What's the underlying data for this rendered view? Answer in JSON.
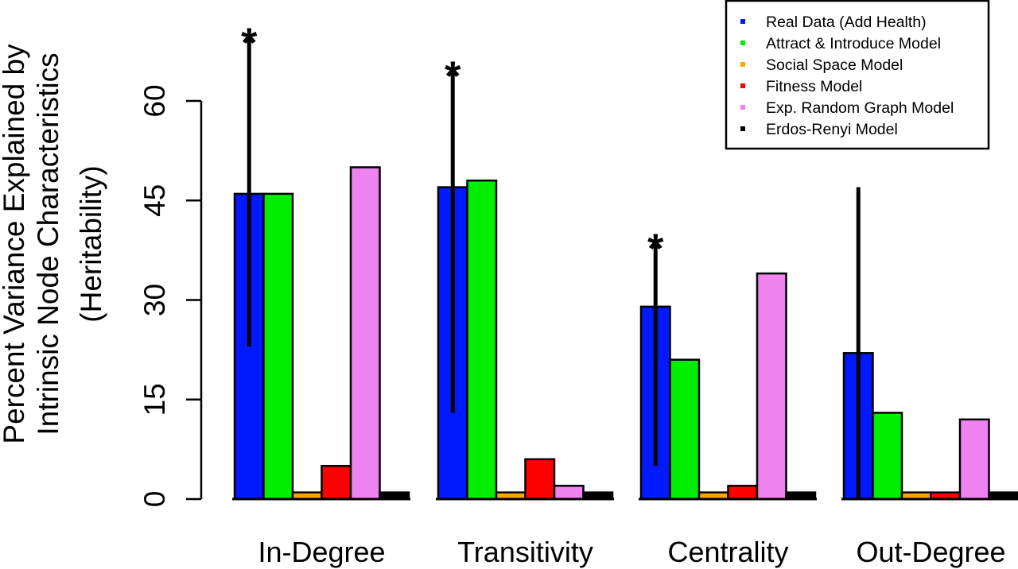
{
  "chart_data": {
    "type": "bar",
    "title": "",
    "xlabel": "",
    "ylabel_lines": [
      "Percent Variance Explained by",
      "Intrinsic Node Characteristics",
      "(Heritability)"
    ],
    "ylim": [
      0,
      60
    ],
    "yticks": [
      "0",
      "15",
      "30",
      "45",
      "60"
    ],
    "ytick_values": [
      0,
      15,
      30,
      45,
      60
    ],
    "categories": [
      "In-Degree",
      "Transitivity",
      "Centrality",
      "Out-Degree"
    ],
    "series": [
      {
        "name": "Real Data (Add Health)",
        "color": "#0019ff",
        "values": [
          46,
          47,
          29,
          22
        ]
      },
      {
        "name": "Attract & Introduce Model",
        "color": "#00ee00",
        "values": [
          46,
          48,
          21,
          13
        ]
      },
      {
        "name": "Social Space Model",
        "color": "#ffa500",
        "values": [
          1,
          1,
          1,
          1
        ]
      },
      {
        "name": "Fitness Model",
        "color": "#ff0000",
        "values": [
          5,
          6,
          2,
          1
        ]
      },
      {
        "name": "Exp. Random Graph Model",
        "color": "#ee82ee",
        "values": [
          50,
          2,
          34,
          12
        ]
      },
      {
        "name": "Erdos-Renyi Model",
        "color": "#000000",
        "values": [
          1,
          1,
          1,
          1
        ]
      }
    ],
    "error_bars": [
      {
        "category": "In-Degree",
        "series": "Real Data (Add Health)",
        "low": 23,
        "high": 70
      },
      {
        "category": "Transitivity",
        "series": "Real Data (Add Health)",
        "low": 13,
        "high": 65
      },
      {
        "category": "Centrality",
        "series": "Real Data (Add Health)",
        "low": 5,
        "high": 39
      },
      {
        "category": "Out-Degree",
        "series": "Real Data (Add Health)",
        "low": 0,
        "high": 47
      }
    ],
    "significance_markers": [
      {
        "category": "In-Degree",
        "label": "*"
      },
      {
        "category": "Transitivity",
        "label": "*"
      },
      {
        "category": "Centrality",
        "label": "*"
      }
    ],
    "legend_position": "top-right",
    "grid": false
  }
}
